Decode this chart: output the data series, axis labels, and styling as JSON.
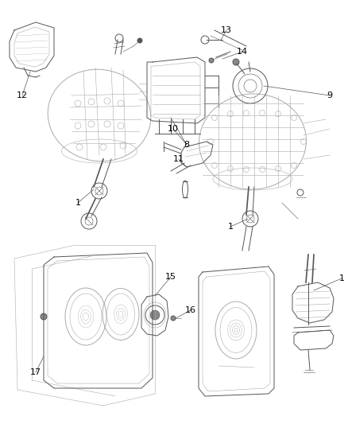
{
  "bg_color": "#ffffff",
  "figsize": [
    4.38,
    5.33
  ],
  "dpi": 100,
  "line_color": "#aaaaaa",
  "dark_line_color": "#555555",
  "label_color": "#000000",
  "label_fontsize": 8.0,
  "thin_lw": 0.4,
  "med_lw": 0.7,
  "thick_lw": 1.2
}
